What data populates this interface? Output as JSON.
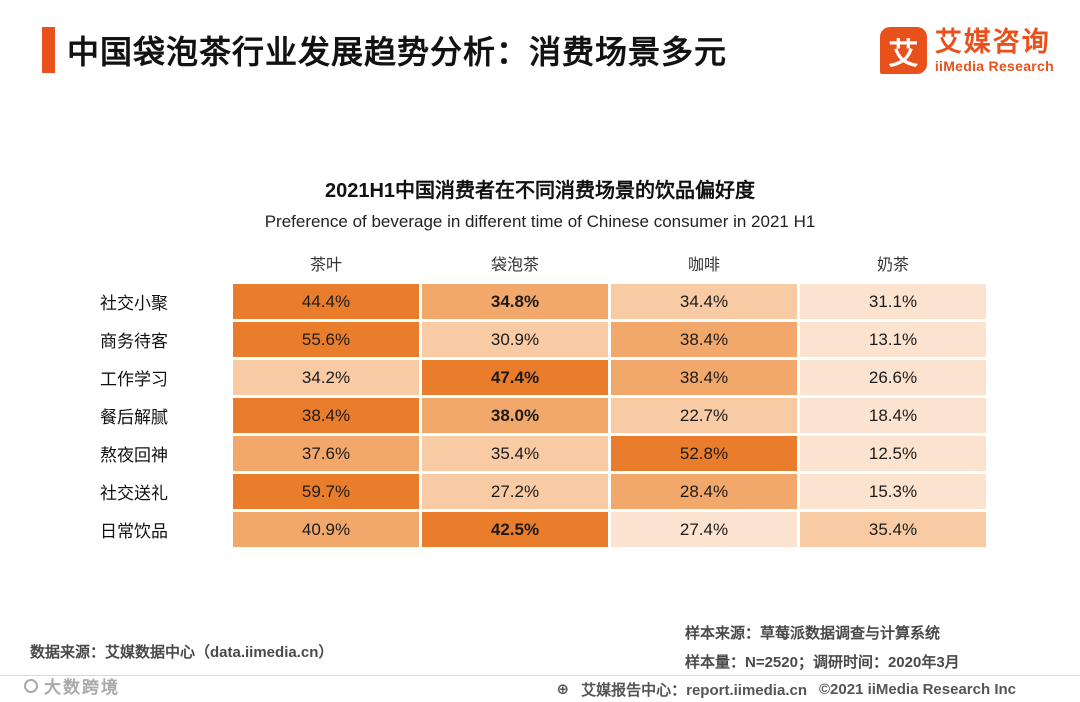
{
  "colors": {
    "accent": "#E8511C",
    "heat_levels_light_to_dark": [
      "#FBE3D0",
      "#F8CBA4",
      "#F3A86B",
      "#EA7D2C"
    ],
    "cell_text": "#1b1b1b"
  },
  "header": {
    "title": "中国袋泡茶行业发展趋势分析：消费场景多元",
    "logo_icon_char": "艾",
    "logo_cn": "艾媒咨询",
    "logo_en": "iiMedia Research"
  },
  "chart_data": {
    "type": "heatmap",
    "title": "2021H1中国消费者在不同消费场景的饮品偏好度",
    "subtitle": "Preference of beverage in different time of Chinese consumer in 2021 H1",
    "columns": [
      "茶叶",
      "袋泡茶",
      "咖啡",
      "奶茶"
    ],
    "row_labels": [
      "社交小聚",
      "商务待客",
      "工作学习",
      "餐后解腻",
      "熬夜回神",
      "社交送礼",
      "日常饮品"
    ],
    "unit": "%",
    "values_percent": [
      [
        44.4,
        34.8,
        34.4,
        31.1
      ],
      [
        55.6,
        30.9,
        38.4,
        13.1
      ],
      [
        34.2,
        47.4,
        38.4,
        26.6
      ],
      [
        38.4,
        38.0,
        22.7,
        18.4
      ],
      [
        37.6,
        35.4,
        52.8,
        12.5
      ],
      [
        59.7,
        27.2,
        28.4,
        15.3
      ],
      [
        40.9,
        42.5,
        27.4,
        35.4
      ]
    ],
    "bold_cells": [
      [
        0,
        1
      ],
      [
        2,
        1
      ],
      [
        3,
        1
      ],
      [
        6,
        1
      ]
    ],
    "color_rule": "per-row rank: highest value gets darkest orange, lowest gets lightest",
    "legend": "none",
    "grid": "thin white separators between cells"
  },
  "footer": {
    "source_left": "数据来源：艾媒数据中心（data.iimedia.cn）",
    "sample_source": "样本来源：草莓派数据调查与计算系统",
    "sample_size": "样本量：N=2520；调研时间：2020年3月",
    "report_center": "艾媒报告中心：report.iimedia.cn",
    "copyright": "©2021  iiMedia Research Inc"
  },
  "watermark": {
    "text": "大数跨境"
  }
}
